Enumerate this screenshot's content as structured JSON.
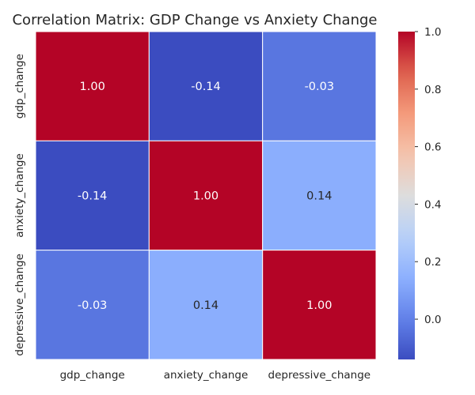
{
  "chart_data": {
    "type": "heatmap",
    "title": "Correlation Matrix: GDP Change vs Anxiety Change",
    "rows": [
      "gdp_change",
      "anxiety_change",
      "depressive_change"
    ],
    "columns": [
      "gdp_change",
      "anxiety_change",
      "depressive_change"
    ],
    "values": [
      [
        1.0,
        -0.14,
        -0.03
      ],
      [
        -0.14,
        1.0,
        0.14
      ],
      [
        -0.03,
        0.14,
        1.0
      ]
    ],
    "annotations": [
      [
        "1.00",
        "-0.14",
        "-0.03"
      ],
      [
        "-0.14",
        "1.00",
        "0.14"
      ],
      [
        "-0.03",
        "0.14",
        "1.00"
      ]
    ],
    "colormap": "coolwarm",
    "color_range": [
      -0.14,
      1.0
    ],
    "colorbar": {
      "ticks": [
        0.0,
        0.2,
        0.4,
        0.6,
        0.8,
        1.0
      ],
      "tick_labels": [
        "0.0",
        "0.2",
        "0.4",
        "0.6",
        "0.8",
        "1.0"
      ]
    },
    "grid": false
  }
}
